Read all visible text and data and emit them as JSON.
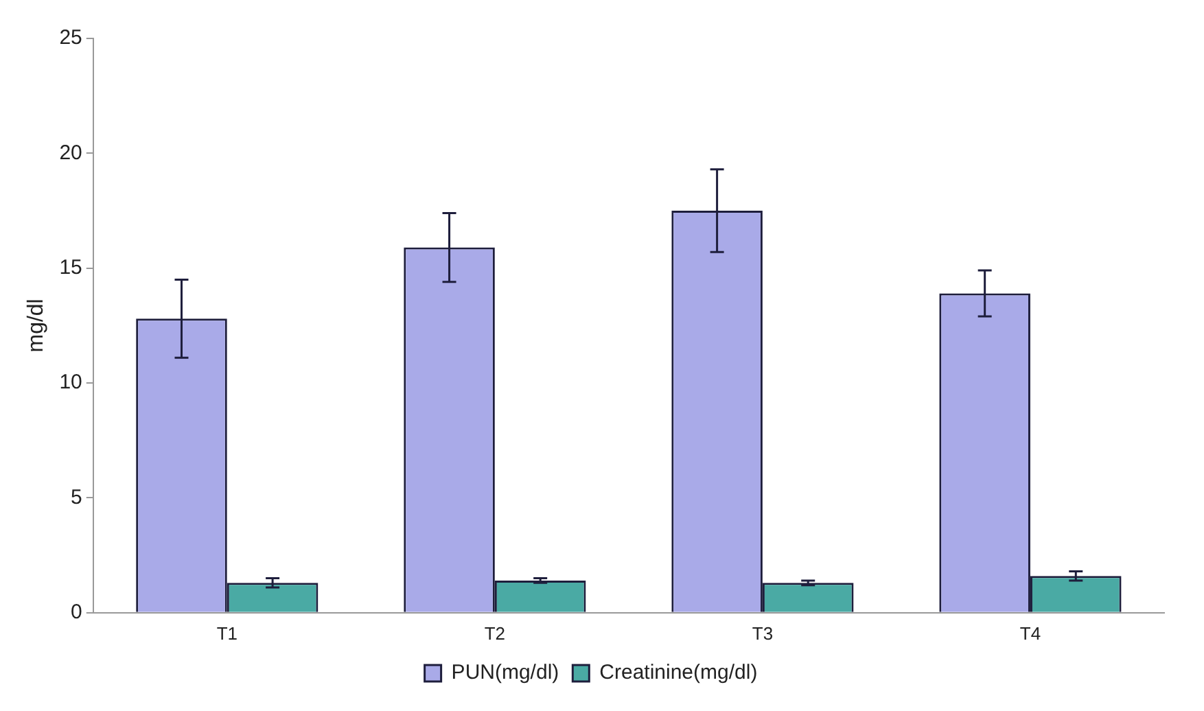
{
  "chart_data": {
    "type": "bar",
    "ylabel": "mg/dl",
    "categories": [
      "T1",
      "T2",
      "T3",
      "T4"
    ],
    "series": [
      {
        "name": "PUN(mg/dl)",
        "color": "#a9aae8",
        "values": [
          12.8,
          15.9,
          17.5,
          13.9
        ],
        "errors": [
          1.7,
          1.5,
          1.8,
          1.0
        ]
      },
      {
        "name": "Creatinine(mg/dl)",
        "color": "#4aaaa4",
        "values": [
          1.3,
          1.4,
          1.3,
          1.6
        ],
        "errors": [
          0.2,
          0.1,
          0.1,
          0.2
        ]
      }
    ],
    "ylim": [
      0,
      25
    ],
    "yticks": [
      0,
      5,
      10,
      15,
      20,
      25
    ],
    "grid": false,
    "legend": "bottom"
  }
}
